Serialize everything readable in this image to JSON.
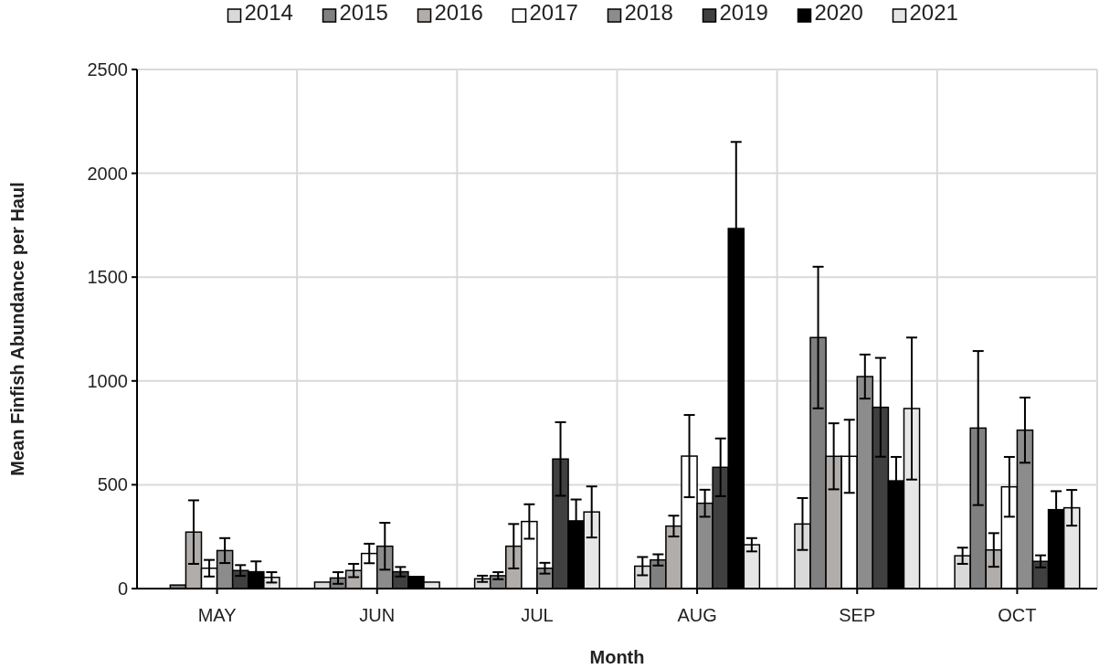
{
  "chart_data": {
    "type": "bar",
    "xlabel": "Month",
    "ylabel": "Mean Finfish Abundance per Haul",
    "categories": [
      "MAY",
      "JUN",
      "JUL",
      "AUG",
      "SEP",
      "OCT"
    ],
    "ylim": [
      0,
      2500
    ],
    "yticks": [
      0,
      500,
      1000,
      1500,
      2000,
      2500
    ],
    "grid": true,
    "legend": "top",
    "series": [
      {
        "name": "2014",
        "color": "#d9d9d9",
        "values": [
          0,
          31,
          47,
          108,
          311,
          158
        ],
        "errors": [
          null,
          null,
          15,
          44,
          125,
          39
        ]
      },
      {
        "name": "2015",
        "color": "#808080",
        "values": [
          17,
          51,
          62,
          138,
          1209,
          773
        ],
        "errors": [
          null,
          28,
          17,
          27,
          341,
          371
        ]
      },
      {
        "name": "2016",
        "color": "#b0adab",
        "values": [
          272,
          87,
          204,
          301,
          637,
          186
        ],
        "errors": [
          153,
          32,
          107,
          50,
          159,
          81
        ]
      },
      {
        "name": "2017",
        "color": "#ffffff",
        "values": [
          98,
          169,
          323,
          638,
          637,
          490
        ],
        "errors": [
          40,
          47,
          83,
          198,
          176,
          144
        ]
      },
      {
        "name": "2018",
        "color": "#8c8c8c",
        "values": [
          183,
          204,
          98,
          411,
          1021,
          763
        ],
        "errors": [
          60,
          113,
          26,
          65,
          106,
          157
        ]
      },
      {
        "name": "2019",
        "color": "#404040",
        "values": [
          87,
          81,
          624,
          584,
          873,
          131
        ],
        "errors": [
          26,
          23,
          177,
          139,
          238,
          29
        ]
      },
      {
        "name": "2020",
        "color": "#000000",
        "values": [
          81,
          58,
          326,
          1734,
          519,
          380
        ],
        "errors": [
          50,
          null,
          103,
          417,
          115,
          89
        ]
      },
      {
        "name": "2021",
        "color": "#e6e6e6",
        "values": [
          54,
          31,
          369,
          211,
          867,
          389
        ],
        "errors": [
          25,
          null,
          123,
          32,
          342,
          86
        ]
      }
    ]
  }
}
